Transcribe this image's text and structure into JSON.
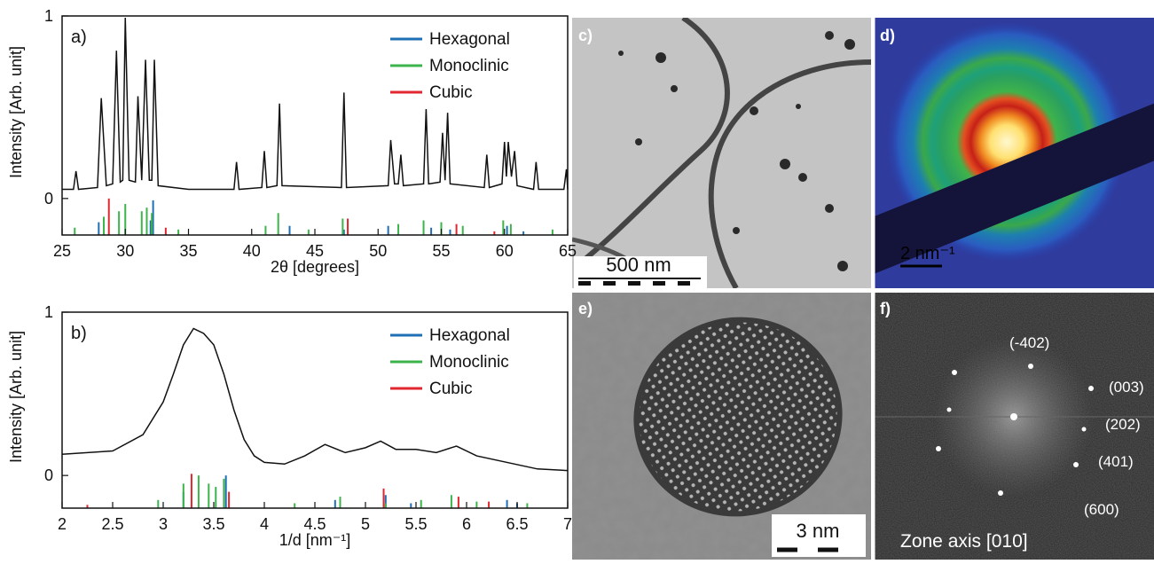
{
  "chart_data": [
    {
      "type": "line",
      "panel_label": "a)",
      "xlabel": "2θ [degrees]",
      "ylabel": "Intensity [Arb. unit]",
      "color": "#111111",
      "x": [
        25,
        25.9,
        26.1,
        26.3,
        27.8,
        28.1,
        28.5,
        29.0,
        29.3,
        29.6,
        29.8,
        30.0,
        30.3,
        30.8,
        31.0,
        31.3,
        31.6,
        31.9,
        32.1,
        32.3,
        32.6,
        35.0,
        38.6,
        38.8,
        39.0,
        40.8,
        41.0,
        41.2,
        42.0,
        42.2,
        42.4,
        47.1,
        47.3,
        47.5,
        50.8,
        51.0,
        51.3,
        51.6,
        51.8,
        52.0,
        53.6,
        53.8,
        54.0,
        54.9,
        55.1,
        55.3,
        55.5,
        55.7,
        58.4,
        58.6,
        58.8,
        59.8,
        60.0,
        60.15,
        60.3,
        60.55,
        60.8,
        61.0,
        62.3,
        62.5,
        62.7,
        64.7,
        64.9,
        65
      ],
      "values": [
        0.05,
        0.05,
        0.15,
        0.05,
        0.06,
        0.55,
        0.07,
        0.08,
        0.81,
        0.09,
        0.1,
        0.99,
        0.1,
        0.09,
        0.56,
        0.1,
        0.76,
        0.1,
        0.1,
        0.76,
        0.07,
        0.05,
        0.05,
        0.2,
        0.05,
        0.06,
        0.26,
        0.06,
        0.07,
        0.52,
        0.07,
        0.06,
        0.58,
        0.06,
        0.07,
        0.32,
        0.08,
        0.08,
        0.24,
        0.07,
        0.08,
        0.49,
        0.08,
        0.09,
        0.36,
        0.1,
        0.47,
        0.08,
        0.06,
        0.24,
        0.06,
        0.08,
        0.31,
        0.12,
        0.31,
        0.12,
        0.26,
        0.07,
        0.05,
        0.2,
        0.05,
        0.05,
        0.16,
        0.05
      ],
      "series": [
        {
          "name": "Hexagonal",
          "color": "#1f6fb4",
          "x": [
            27.9,
            32.0,
            32.2,
            43.0,
            47.3,
            50.8,
            54.2,
            55.7,
            60.2,
            61.5
          ],
          "values": [
            -0.13,
            -0.12,
            -0.01,
            -0.15,
            -0.17,
            -0.15,
            -0.16,
            -0.17,
            -0.15,
            -0.18
          ]
        },
        {
          "name": "Monoclinic",
          "color": "#3cb44b",
          "x": [
            26.0,
            28.3,
            29.5,
            30.0,
            31.3,
            31.7,
            32.1,
            34.2,
            41.1,
            42.1,
            44.5,
            47.2,
            51.6,
            53.6,
            55.0,
            56.7,
            59.9,
            60.5,
            63.8
          ],
          "values": [
            -0.16,
            -0.1,
            -0.07,
            -0.03,
            -0.07,
            -0.05,
            -0.08,
            -0.17,
            -0.15,
            -0.08,
            -0.17,
            -0.11,
            -0.14,
            -0.12,
            -0.13,
            -0.15,
            -0.12,
            -0.14,
            -0.17
          ]
        },
        {
          "name": "Cubic",
          "color": "#e0262e",
          "x": [
            28.7,
            33.2,
            47.6,
            56.2,
            59.2
          ],
          "values": [
            0.0,
            -0.16,
            -0.11,
            -0.14,
            -0.18
          ]
        }
      ],
      "xlim": [
        25,
        65
      ],
      "xticks": [
        25,
        30,
        35,
        40,
        45,
        50,
        55,
        60,
        65
      ],
      "ylim": [
        -0.2,
        1
      ],
      "yticks": [
        0,
        1
      ],
      "legend": "upper right"
    },
    {
      "type": "line",
      "panel_label": "b)",
      "xlabel": "1/d [nm⁻¹]",
      "ylabel": "Intensity [Arb. unit]",
      "color": "#111111",
      "x": [
        2,
        2.5,
        2.8,
        3.0,
        3.1,
        3.2,
        3.3,
        3.4,
        3.5,
        3.6,
        3.7,
        3.8,
        3.9,
        4.0,
        4.2,
        4.4,
        4.6,
        4.8,
        5.0,
        5.15,
        5.3,
        5.5,
        5.7,
        5.9,
        6.1,
        6.4,
        6.7,
        7.0
      ],
      "values": [
        0.13,
        0.15,
        0.25,
        0.45,
        0.62,
        0.8,
        0.9,
        0.87,
        0.8,
        0.62,
        0.4,
        0.22,
        0.12,
        0.08,
        0.07,
        0.12,
        0.19,
        0.14,
        0.17,
        0.21,
        0.16,
        0.16,
        0.14,
        0.18,
        0.12,
        0.08,
        0.04,
        0.03
      ],
      "series": [
        {
          "name": "Hexagonal",
          "color": "#1f6fb4",
          "x": [
            3.2,
            3.62,
            4.7,
            5.2,
            5.45,
            6.4,
            6.5
          ],
          "values": [
            -0.1,
            0.0,
            -0.15,
            -0.12,
            -0.17,
            -0.15,
            -0.17
          ]
        },
        {
          "name": "Monoclinic",
          "color": "#3cb44b",
          "x": [
            2.95,
            3.2,
            3.35,
            3.45,
            3.52,
            3.6,
            4.3,
            4.75,
            5.2,
            5.55,
            5.85,
            6.1,
            6.6
          ],
          "values": [
            -0.15,
            -0.05,
            0.0,
            -0.05,
            -0.07,
            -0.02,
            -0.17,
            -0.13,
            -0.17,
            -0.15,
            -0.12,
            -0.16,
            -0.17
          ]
        },
        {
          "name": "Cubic",
          "color": "#e0262e",
          "x": [
            2.25,
            3.28,
            3.65,
            5.18,
            5.92,
            6.22
          ],
          "values": [
            -0.18,
            0.01,
            -0.1,
            -0.08,
            -0.13,
            -0.16
          ]
        }
      ],
      "xlim": [
        2,
        7
      ],
      "xticks": [
        2,
        2.5,
        3,
        3.5,
        4,
        4.5,
        5,
        5.5,
        6,
        6.5,
        7
      ],
      "ylim": [
        -0.2,
        1
      ],
      "yticks": [
        0,
        1
      ],
      "legend": "upper right"
    }
  ],
  "panels": [
    {
      "label": "c)",
      "scale_bar": "500 nm"
    },
    {
      "label": "d)",
      "scale_bar": "2 nm⁻¹"
    },
    {
      "label": "e)",
      "scale_bar": "3 nm"
    },
    {
      "label": "f)",
      "spots": [
        "(-402)",
        "(003)",
        "(202)",
        "(401)",
        "(600)"
      ],
      "caption": "Zone axis [010]"
    }
  ]
}
